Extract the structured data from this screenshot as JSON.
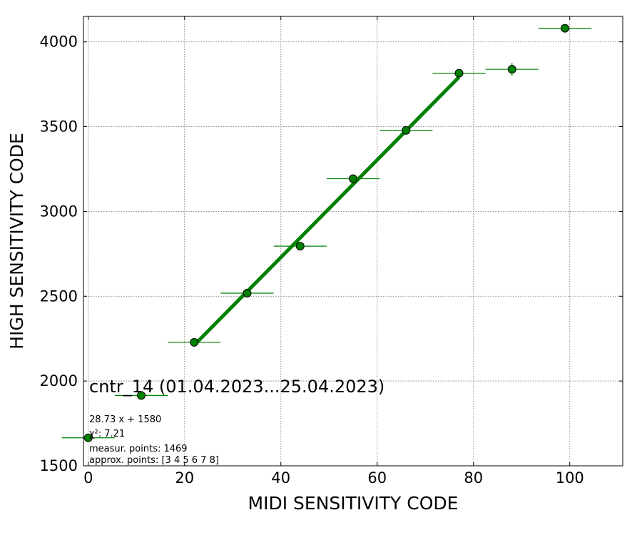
{
  "chart_data": {
    "type": "scatter",
    "xlabel": "MIDI SENSITIVITY CODE",
    "ylabel": "HIGH SENSITIVITY CODE",
    "xlim": [
      -1,
      111
    ],
    "ylim": [
      1500,
      4150
    ],
    "xticks": [
      0,
      20,
      40,
      60,
      80,
      100
    ],
    "yticks": [
      1500,
      2000,
      2500,
      3000,
      3500,
      4000
    ],
    "grid": true,
    "annotation_title": "cntr_14 (01.04.2023...25.04.2023)",
    "annotation_lines": [
      "28.73 x + 1580",
      "χ²: 7.21",
      "measur. points: 1469",
      "approx. points: [3 4 5 6 7 8]"
    ],
    "colors": {
      "marker": "#008000",
      "fit": "#008000",
      "errorbar": "#008000"
    },
    "points": [
      {
        "x": 0,
        "y": 1665,
        "xerr": 5.5,
        "yerr": 10
      },
      {
        "x": 11,
        "y": 1915,
        "xerr": 5.5,
        "yerr": 10
      },
      {
        "x": 22,
        "y": 2228,
        "xerr": 5.5,
        "yerr": 10
      },
      {
        "x": 33,
        "y": 2518,
        "xerr": 5.5,
        "yerr": 12
      },
      {
        "x": 44,
        "y": 2795,
        "xerr": 5.5,
        "yerr": 12
      },
      {
        "x": 55,
        "y": 3193,
        "xerr": 5.5,
        "yerr": 15
      },
      {
        "x": 66,
        "y": 3478,
        "xerr": 5.5,
        "yerr": 22
      },
      {
        "x": 77,
        "y": 3815,
        "xerr": 5.5,
        "yerr": 20
      },
      {
        "x": 88,
        "y": 3838,
        "xerr": 5.5,
        "yerr": 38
      },
      {
        "x": 99,
        "y": 4080,
        "xerr": 5.5,
        "yerr": 10
      }
    ],
    "fit": {
      "slope": 28.73,
      "intercept": 1580,
      "x_range": [
        22,
        77
      ]
    }
  }
}
